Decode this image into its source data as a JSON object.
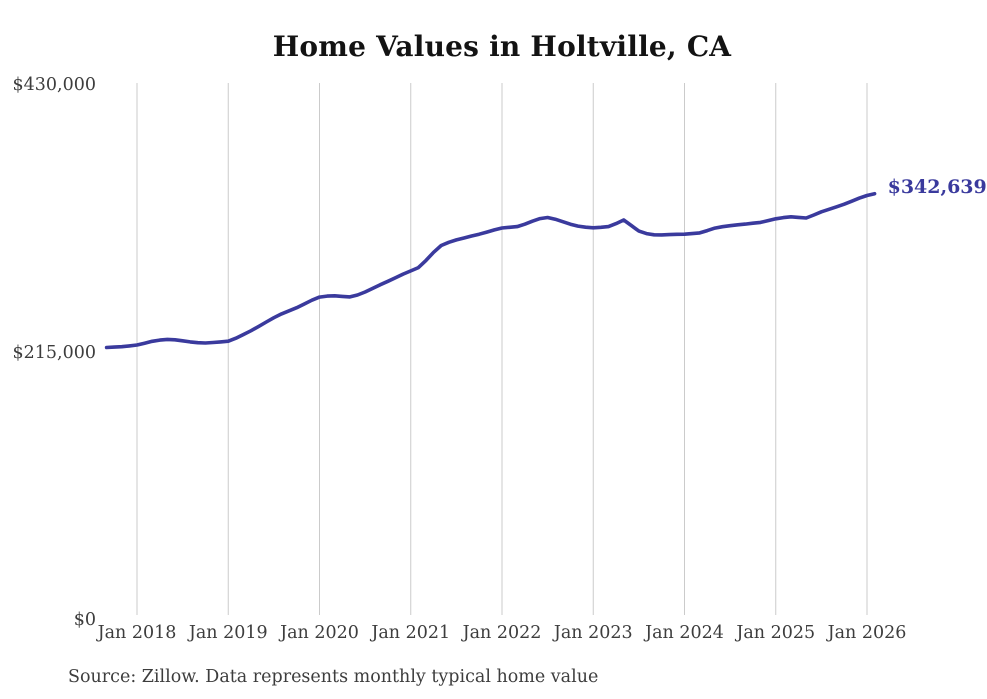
{
  "chart": {
    "title": "Home Values in Holtville, CA",
    "end_label": "$342,639",
    "source": "Source: Zillow. Data represents monthly typical home value"
  },
  "chart_data": {
    "type": "line",
    "title": "Home Values in Holtville, CA",
    "xlabel": "",
    "ylabel": "",
    "ylim": [
      0,
      430000
    ],
    "grid": "vertical",
    "legend": "none",
    "line_color": "#3a3a9d",
    "grid_color": "#cbcbcb",
    "text_color": "#3d3d3d",
    "y_tick_values": [
      0,
      215000,
      430000
    ],
    "y_tick_labels": [
      "$0",
      "$215,000",
      "$430,000"
    ],
    "x_tick_labels": [
      "Jan 2018",
      "Jan 2019",
      "Jan 2020",
      "Jan 2021",
      "Jan 2022",
      "Jan 2023",
      "Jan 2024",
      "Jan 2025",
      "Jan 2026"
    ],
    "end_annotation": "$342,639",
    "source": "Source: Zillow. Data represents monthly typical home value",
    "x": [
      "2017-09",
      "2017-10",
      "2017-11",
      "2017-12",
      "2018-01",
      "2018-02",
      "2018-03",
      "2018-04",
      "2018-05",
      "2018-06",
      "2018-07",
      "2018-08",
      "2018-09",
      "2018-10",
      "2018-11",
      "2018-12",
      "2019-01",
      "2019-02",
      "2019-03",
      "2019-04",
      "2019-05",
      "2019-06",
      "2019-07",
      "2019-08",
      "2019-09",
      "2019-10",
      "2019-11",
      "2019-12",
      "2020-01",
      "2020-02",
      "2020-03",
      "2020-04",
      "2020-05",
      "2020-06",
      "2020-07",
      "2020-08",
      "2020-09",
      "2020-10",
      "2020-11",
      "2020-12",
      "2021-01",
      "2021-02",
      "2021-03",
      "2021-04",
      "2021-05",
      "2021-06",
      "2021-07",
      "2021-08",
      "2021-09",
      "2021-10",
      "2021-11",
      "2021-12",
      "2022-01",
      "2022-02",
      "2022-03",
      "2022-04",
      "2022-05",
      "2022-06",
      "2022-07",
      "2022-08",
      "2022-09",
      "2022-10",
      "2022-11",
      "2022-12",
      "2023-01",
      "2023-02",
      "2023-03",
      "2023-04",
      "2023-05",
      "2023-06",
      "2023-07",
      "2023-08",
      "2023-09",
      "2023-10",
      "2023-11",
      "2023-12",
      "2024-01",
      "2024-02",
      "2024-03",
      "2024-04",
      "2024-05",
      "2024-06",
      "2024-07",
      "2024-08",
      "2024-09",
      "2024-10",
      "2024-11",
      "2024-12",
      "2025-01",
      "2025-02",
      "2025-03",
      "2025-04",
      "2025-05",
      "2025-06",
      "2025-07",
      "2025-08",
      "2025-09",
      "2025-10",
      "2025-11",
      "2025-12",
      "2026-01",
      "2026-02"
    ],
    "values": [
      219000,
      219300,
      219700,
      220300,
      221000,
      222500,
      224000,
      225000,
      225500,
      225200,
      224400,
      223500,
      222900,
      222600,
      223000,
      223500,
      224100,
      226500,
      229500,
      232500,
      236000,
      239500,
      243000,
      246000,
      248500,
      251000,
      254000,
      257000,
      259500,
      260300,
      260600,
      260100,
      259700,
      261200,
      263600,
      266500,
      269500,
      272200,
      275000,
      278000,
      280600,
      283200,
      289000,
      295500,
      301000,
      303600,
      305500,
      307000,
      308600,
      310100,
      311800,
      313500,
      315100,
      315600,
      316200,
      318100,
      320500,
      322600,
      323500,
      322100,
      320100,
      318100,
      316600,
      315700,
      315200,
      315600,
      316200,
      318600,
      321500,
      317100,
      312600,
      310600,
      309600,
      309500,
      309800,
      310000,
      310100,
      310600,
      311100,
      313000,
      315000,
      316100,
      316900,
      317600,
      318200,
      318900,
      319600,
      321000,
      322500,
      323400,
      324100,
      323600,
      323100,
      325500,
      328100,
      330100,
      332100,
      334200,
      336600,
      339100,
      341200,
      342639
    ]
  }
}
